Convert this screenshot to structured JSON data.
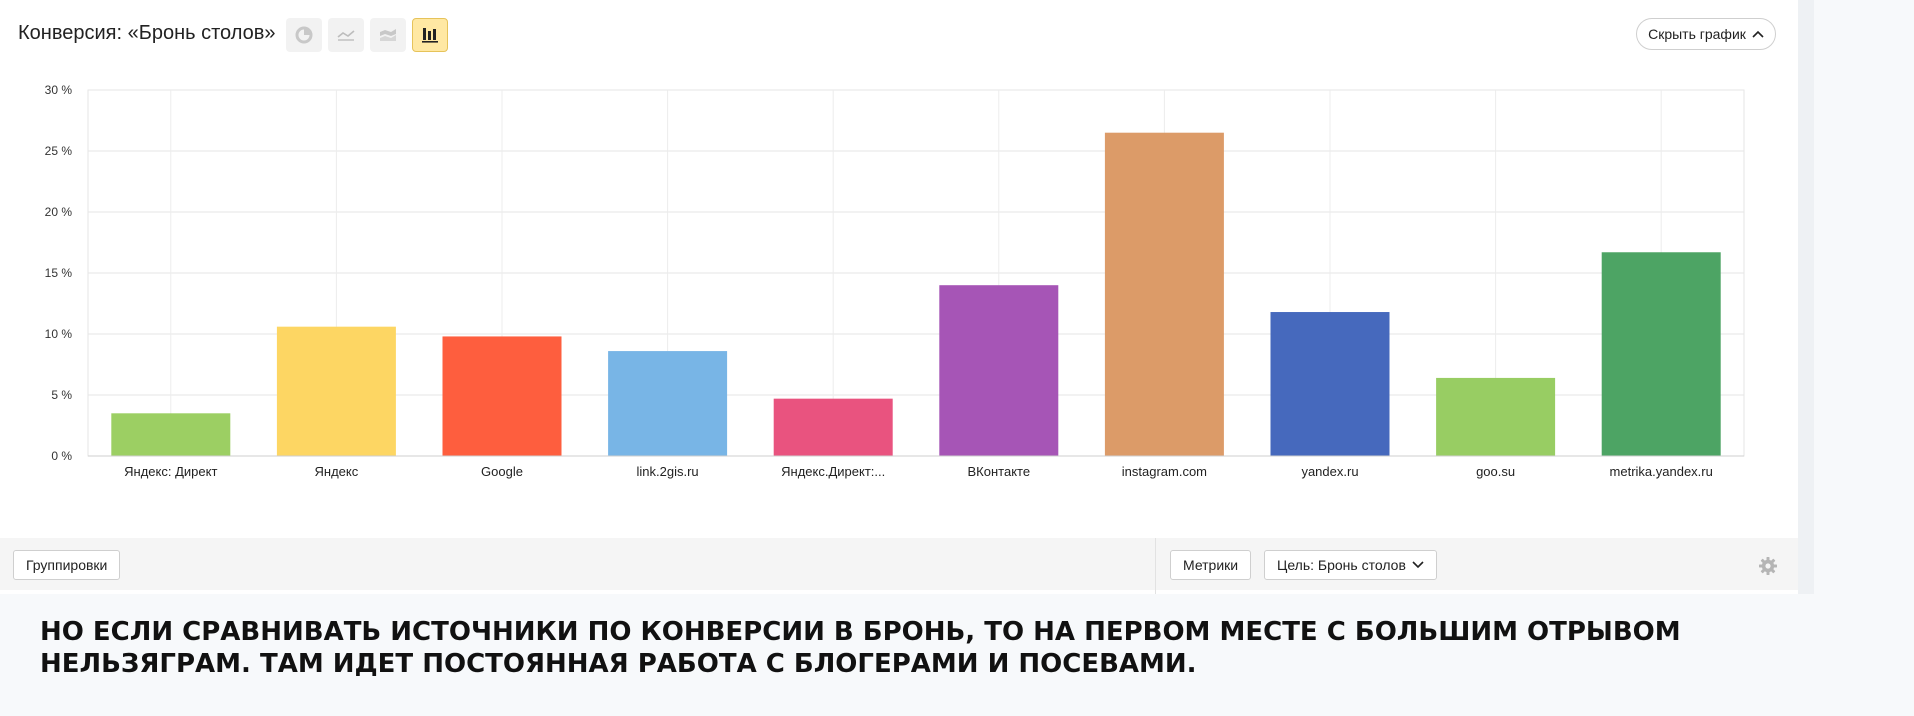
{
  "header": {
    "title": "Конверсия: «Бронь столов»",
    "hide_chart_label": "Скрыть график",
    "view_icons": [
      "pie-chart-icon",
      "line-chart-icon",
      "stacked-area-icon",
      "bar-chart-icon"
    ],
    "active_view": "bar-chart-icon"
  },
  "chart_data": {
    "type": "bar",
    "categories": [
      "Яндекс: Директ",
      "Яндекс",
      "Google",
      "link.2gis.ru",
      "Яндекс.Директ:...",
      "ВКонтакте",
      "instagram.com",
      "yandex.ru",
      "goo.su",
      "metrika.yandex.ru"
    ],
    "values": [
      3.5,
      10.6,
      9.8,
      8.6,
      4.7,
      14.0,
      26.5,
      11.8,
      6.4,
      16.7
    ],
    "colors": [
      "#9ccf63",
      "#fdd663",
      "#fe5e3e",
      "#78b5e6",
      "#e9537f",
      "#a655b6",
      "#dc9b68",
      "#4669bd",
      "#98cd63",
      "#4da464"
    ],
    "y_ticks": [
      "0 %",
      "5 %",
      "10 %",
      "15 %",
      "20 %",
      "25 %",
      "30 %"
    ],
    "ylim": [
      0,
      30
    ],
    "grid": true
  },
  "toolbar": {
    "groupings_label": "Группировки",
    "metrics_label": "Метрики",
    "goal_label": "Цель: Бронь столов"
  },
  "caption": {
    "line1": "НО ЕСЛИ СРАВНИВАТЬ ИСТОЧНИКИ ПО КОНВЕРСИИ В БРОНЬ, ТО НА ПЕРВОМ МЕСТЕ С БОЛЬШИМ ОТРЫВОМ",
    "line2": "НЕЛЬЗЯГРАМ. ТАМ ИДЕТ ПОСТОЯННАЯ РАБОТА С БЛОГЕРАМИ И ПОСЕВАМИ."
  }
}
